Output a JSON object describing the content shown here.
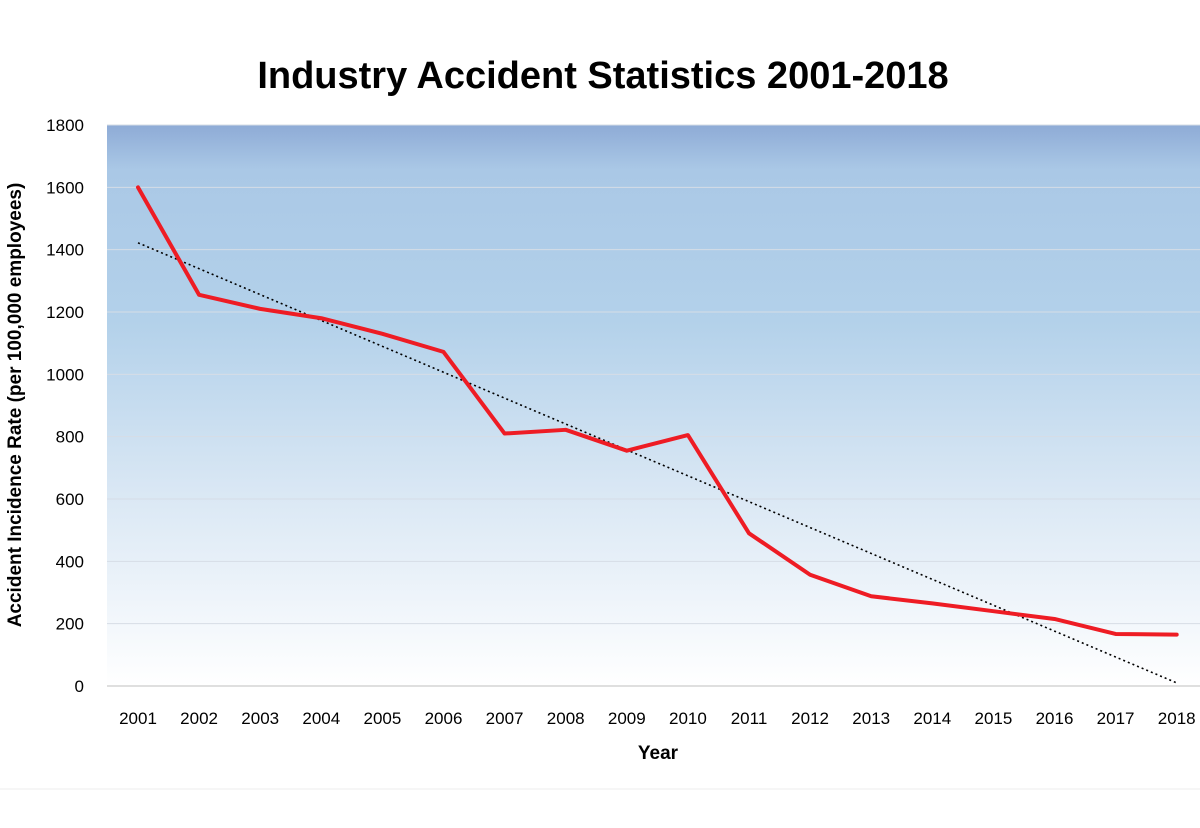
{
  "chart_data": {
    "type": "line",
    "title": "Industry Accident Statistics 2001-2018",
    "xlabel": "Year",
    "ylabel": "Accident Incidence Rate (per 100,000 employees)",
    "ylim": [
      0,
      1800
    ],
    "y_ticks": [
      "0",
      "200",
      "400",
      "600",
      "800",
      "1000",
      "1200",
      "1400",
      "1600",
      "1800"
    ],
    "categories": [
      "2001",
      "2002",
      "2003",
      "2004",
      "2005",
      "2006",
      "2007",
      "2008",
      "2009",
      "2010",
      "2011",
      "2012",
      "2013",
      "2014",
      "2015",
      "2016",
      "2017",
      "2018"
    ],
    "series": [
      {
        "values": [
          1600,
          1255,
          1210,
          1180,
          1130,
          1072,
          810,
          822,
          755,
          805,
          490,
          357,
          288,
          265,
          240,
          215,
          167,
          165
        ],
        "color": "#ee1c24"
      }
    ],
    "trendline": {
      "style": "dotted",
      "color": "#000000",
      "start": 1422,
      "end": 10
    },
    "grid": true,
    "legend": "none",
    "plot_background": "vertical gradient, blue at top to white at bottom"
  }
}
